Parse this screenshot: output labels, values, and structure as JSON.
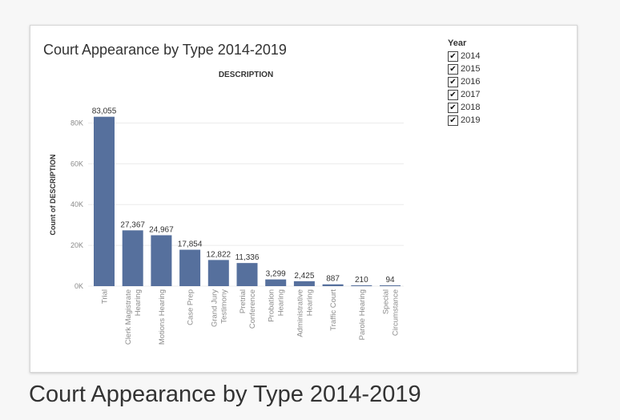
{
  "caption": "Court Appearance by Type 2014-2019",
  "legend": {
    "title": "Year",
    "items": [
      {
        "label": "2014",
        "checked": true
      },
      {
        "label": "2015",
        "checked": true
      },
      {
        "label": "2016",
        "checked": true
      },
      {
        "label": "2017",
        "checked": true
      },
      {
        "label": "2018",
        "checked": true
      },
      {
        "label": "2019",
        "checked": true
      }
    ],
    "check_glyph": "✔"
  },
  "colors": {
    "bar": "#56709d",
    "grid": "#ececec",
    "axis_text": "#8a8a8a",
    "label_text": "#333333"
  },
  "chart_data": {
    "type": "bar",
    "title": "Court Appearance by Type 2014-2019",
    "column_header": "DESCRIPTION",
    "ylabel": "Count of DESCRIPTION",
    "ylim": [
      0,
      90000
    ],
    "yticks": [
      0,
      20000,
      40000,
      60000,
      80000
    ],
    "ytick_labels": [
      "0K",
      "20K",
      "40K",
      "60K",
      "80K"
    ],
    "grid": true,
    "legend_position": "top-right",
    "categories": [
      [
        "Trial"
      ],
      [
        "Clerk Magistrate",
        "Hearing"
      ],
      [
        "Motions Hearing"
      ],
      [
        "Case Prep"
      ],
      [
        "Grand Jury",
        "Testimony"
      ],
      [
        "Pretrial",
        "Conference"
      ],
      [
        "Probation",
        "Hearing"
      ],
      [
        "Administrative",
        "Hearing"
      ],
      [
        "Traffic Court"
      ],
      [
        "Parole Hearing"
      ],
      [
        "Special",
        "Circumstance"
      ]
    ],
    "values": [
      83055,
      27367,
      24967,
      17854,
      12822,
      11336,
      3299,
      2425,
      887,
      210,
      94
    ],
    "value_labels": [
      "83,055",
      "27,367",
      "24,967",
      "17,854",
      "12,822",
      "11,336",
      "3,299",
      "2,425",
      "887",
      "210",
      "94"
    ]
  }
}
